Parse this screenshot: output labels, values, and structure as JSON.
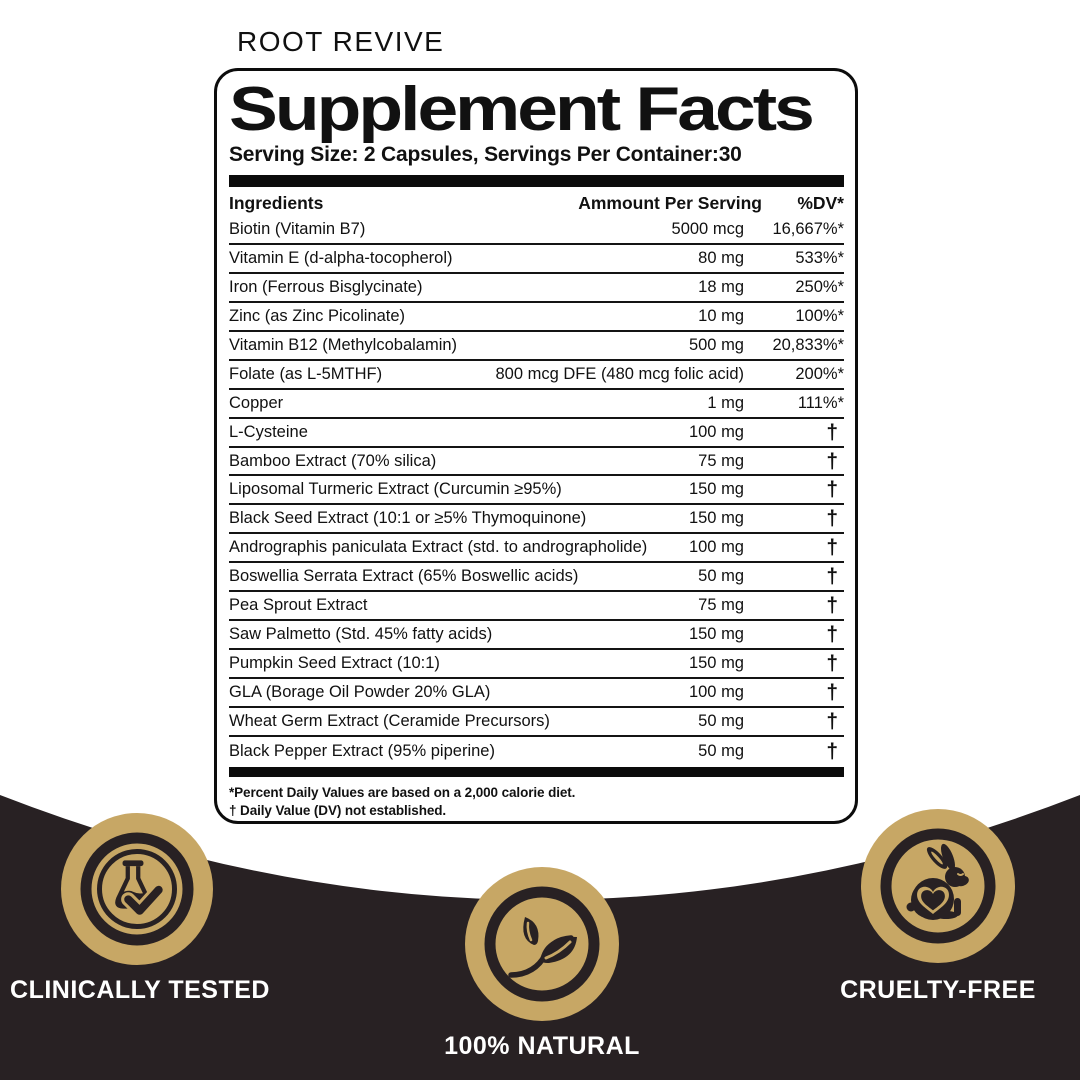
{
  "brand": "ROOT REVIVE",
  "colors": {
    "gold": "#C7A765",
    "dark": "#282123",
    "ink": "#111111"
  },
  "panel": {
    "title": "Supplement Facts",
    "serving_line": "Serving Size: 2 Capsules, Servings Per Container:30",
    "table": {
      "headers": {
        "ingredient": "Ingredients",
        "amount": "Ammount Per Serving",
        "dv": "%DV*"
      },
      "rows": [
        {
          "ingredient": "Biotin (Vitamin B7)",
          "amount": "5000 mcg",
          "dv": "16,667%*"
        },
        {
          "ingredient": "Vitamin E (d-alpha-tocopherol)",
          "amount": "80 mg",
          "dv": "533%*"
        },
        {
          "ingredient": "Iron (Ferrous Bisglycinate)",
          "amount": "18 mg",
          "dv": "250%*"
        },
        {
          "ingredient": "Zinc (as Zinc Picolinate)",
          "amount": "10 mg",
          "dv": "100%*"
        },
        {
          "ingredient": "Vitamin B12 (Methylcobalamin)",
          "amount": "500 mg",
          "dv": "20,833%*"
        },
        {
          "ingredient": "Folate (as L-5MTHF)",
          "amount": "800 mcg DFE (480 mcg folic acid)",
          "dv": "200%*"
        },
        {
          "ingredient": "Copper",
          "amount": "1 mg",
          "dv": "111%*"
        },
        {
          "ingredient": "L-Cysteine",
          "amount": "100 mg",
          "dv": "†"
        },
        {
          "ingredient": "Bamboo Extract (70% silica)",
          "amount": "75 mg",
          "dv": "†"
        },
        {
          "ingredient": "Liposomal Turmeric Extract (Curcumin ≥95%)",
          "amount": "150 mg",
          "dv": "†"
        },
        {
          "ingredient": "Black Seed Extract (10:1 or ≥5% Thymoquinone)",
          "amount": "150 mg",
          "dv": "†"
        },
        {
          "ingredient": "Andrographis paniculata Extract (std. to andrographolide)",
          "amount": "100 mg",
          "dv": "†"
        },
        {
          "ingredient": "Boswellia Serrata Extract (65% Boswellic acids)",
          "amount": "50 mg",
          "dv": "†"
        },
        {
          "ingredient": "Pea Sprout Extract",
          "amount": "75 mg",
          "dv": "†"
        },
        {
          "ingredient": "Saw Palmetto (Std. 45% fatty acids)",
          "amount": "150 mg",
          "dv": "†"
        },
        {
          "ingredient": "Pumpkin Seed Extract (10:1)",
          "amount": "150 mg",
          "dv": "†"
        },
        {
          "ingredient": "GLA (Borage Oil Powder 20% GLA)",
          "amount": "100 mg",
          "dv": "†"
        },
        {
          "ingredient": "Wheat Germ Extract (Ceramide Precursors)",
          "amount": "50 mg",
          "dv": "†"
        },
        {
          "ingredient": "Black Pepper Extract (95% piperine)",
          "amount": "50 mg",
          "dv": "†"
        }
      ]
    },
    "footnotes": {
      "dv_note": "*Percent Daily Values are based on a 2,000 calorie diet.",
      "dagger_note": "† Daily Value (DV) not established."
    }
  },
  "badges": {
    "clinically_tested": {
      "label": "CLINICALLY TESTED",
      "icon": "flask-check-icon"
    },
    "natural": {
      "label": "100% NATURAL",
      "icon": "leaf-icon"
    },
    "cruelty_free": {
      "label": "CRUELTY-FREE",
      "icon": "rabbit-heart-icon"
    }
  }
}
